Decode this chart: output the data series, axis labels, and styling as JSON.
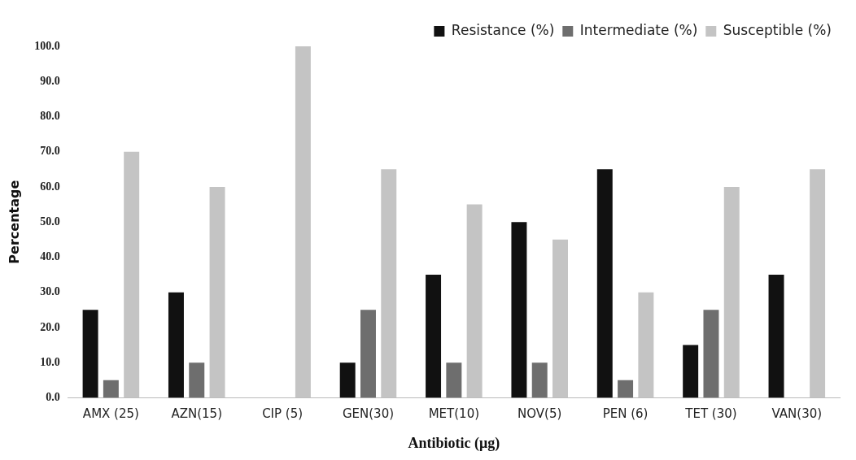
{
  "chart_data": {
    "type": "bar",
    "xlabel": "Antibiotic (μg)",
    "ylabel": "Percentage",
    "categories": [
      "AMX (25)",
      "AZN(15)",
      "CIP (5)",
      "GEN(30)",
      "MET(10)",
      "NOV(5)",
      "PEN (6)",
      "TET (30)",
      "VAN(30)"
    ],
    "series": [
      {
        "name": "Resistance (%)",
        "color": "#111111",
        "values": [
          25,
          30,
          0,
          10,
          35,
          50,
          65,
          15,
          35
        ]
      },
      {
        "name": "Intermediate (%)",
        "color": "#6e6e6e",
        "values": [
          5,
          10,
          0,
          25,
          10,
          10,
          5,
          25,
          0
        ]
      },
      {
        "name": "Susceptible (%)",
        "color": "#c4c4c4",
        "values": [
          70,
          60,
          100,
          65,
          55,
          45,
          30,
          60,
          65
        ]
      }
    ],
    "ylim": [
      0,
      100
    ],
    "yticks": [
      {
        "value": 0,
        "label": "0.0"
      },
      {
        "value": 10,
        "label": "10.0"
      },
      {
        "value": 20,
        "label": "20.0"
      },
      {
        "value": 30,
        "label": "30.0"
      },
      {
        "value": 40,
        "label": "40.0"
      },
      {
        "value": 50,
        "label": "50.0"
      },
      {
        "value": 60,
        "label": "60.0"
      },
      {
        "value": 70,
        "label": "70.0"
      },
      {
        "value": 80,
        "label": "80.0"
      },
      {
        "value": 90,
        "label": "90.0"
      },
      {
        "value": 100,
        "label": "100.0"
      }
    ],
    "grid": false,
    "legend": "top right"
  }
}
